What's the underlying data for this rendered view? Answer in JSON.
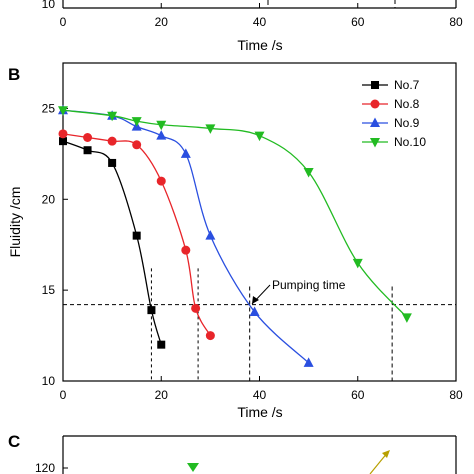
{
  "top_partial": {
    "xlabel": "Time /s",
    "y_tick_visible": "10",
    "x_ticks": [
      "0",
      "20",
      "40",
      "60",
      "80"
    ]
  },
  "panel_b": {
    "label": "B",
    "ylabel": "Fluidity /cm",
    "xlabel": "Time /s",
    "x_ticks": [
      "0",
      "20",
      "40",
      "60",
      "80"
    ],
    "y_ticks": [
      "10",
      "15",
      "20",
      "25"
    ],
    "annotation": "Pumping time"
  },
  "panel_c": {
    "label": "C",
    "y_tick_visible": "120"
  },
  "chart_data": {
    "type": "line",
    "xlabel": "Time /s",
    "ylabel": "Fluidity /cm",
    "xlim": [
      0,
      80
    ],
    "ylim": [
      10,
      27.5
    ],
    "legend_position": "top-right",
    "pumping_time_threshold": 14.2,
    "series": [
      {
        "name": "No.7",
        "color": "#000000",
        "marker": "square",
        "x": [
          0,
          5,
          10,
          15,
          18,
          20
        ],
        "y": [
          23.2,
          22.7,
          22.0,
          18.0,
          13.9,
          12.0
        ]
      },
      {
        "name": "No.8",
        "color": "#e8252a",
        "marker": "circle",
        "x": [
          0,
          5,
          10,
          15,
          20,
          25,
          27,
          30
        ],
        "y": [
          23.6,
          23.4,
          23.2,
          23.0,
          21.0,
          17.2,
          14.0,
          12.5
        ]
      },
      {
        "name": "No.9",
        "color": "#2a4fe0",
        "marker": "triangle-up",
        "x": [
          0,
          10,
          15,
          20,
          25,
          30,
          39,
          50
        ],
        "y": [
          24.9,
          24.6,
          24.0,
          23.5,
          22.5,
          18.0,
          13.8,
          11.0
        ]
      },
      {
        "name": "No.10",
        "color": "#22bb22",
        "marker": "triangle-down",
        "x": [
          0,
          10,
          15,
          20,
          30,
          40,
          50,
          60,
          70
        ],
        "y": [
          24.9,
          24.6,
          24.3,
          24.1,
          23.9,
          23.5,
          21.5,
          16.5,
          13.5
        ]
      }
    ],
    "pumping_time_x": [
      18,
      27.5,
      38,
      67
    ]
  }
}
